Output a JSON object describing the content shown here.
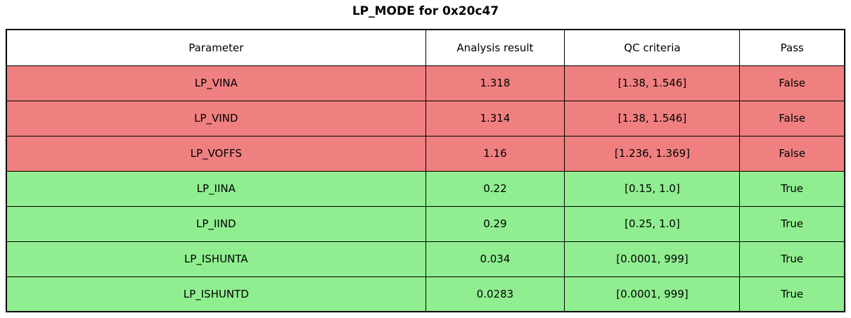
{
  "title": "LP_MODE for 0x20c47",
  "colors": {
    "fail_bg": "#F08080",
    "pass_bg": "#90EE90",
    "header_bg": "#FFFFFF",
    "border": "#000000",
    "text": "#000000"
  },
  "chart_data": {
    "type": "table",
    "title": "LP_MODE for 0x20c47",
    "columns": [
      "Parameter",
      "Analysis result",
      "QC criteria",
      "Pass"
    ],
    "rows": [
      {
        "parameter": "LP_VINA",
        "analysis_result": "1.318",
        "qc_criteria": "[1.38, 1.546]",
        "pass": "False"
      },
      {
        "parameter": "LP_VIND",
        "analysis_result": "1.314",
        "qc_criteria": "[1.38, 1.546]",
        "pass": "False"
      },
      {
        "parameter": "LP_VOFFS",
        "analysis_result": "1.16",
        "qc_criteria": "[1.236, 1.369]",
        "pass": "False"
      },
      {
        "parameter": "LP_IINA",
        "analysis_result": "0.22",
        "qc_criteria": "[0.15, 1.0]",
        "pass": "True"
      },
      {
        "parameter": "LP_IIND",
        "analysis_result": "0.29",
        "qc_criteria": "[0.25, 1.0]",
        "pass": "True"
      },
      {
        "parameter": "LP_ISHUNTA",
        "analysis_result": "0.034",
        "qc_criteria": "[0.0001, 999]",
        "pass": "True"
      },
      {
        "parameter": "LP_ISHUNTD",
        "analysis_result": "0.0283",
        "qc_criteria": "[0.0001, 999]",
        "pass": "True"
      }
    ]
  }
}
